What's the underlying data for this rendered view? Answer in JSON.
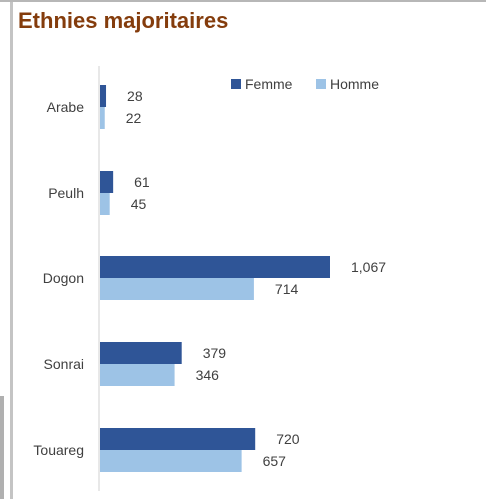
{
  "chart_data": {
    "type": "bar",
    "orientation": "horizontal",
    "title": "Ethnies majoritaires",
    "categories": [
      "Arabe",
      "Peulh",
      "Dogon",
      "Sonrai",
      "Touareg"
    ],
    "series": [
      {
        "name": "Femme",
        "color": "#2f5597",
        "values": [
          28,
          61,
          1067,
          379,
          720
        ],
        "labels": [
          "28",
          "61",
          "1,067",
          "379",
          "720"
        ]
      },
      {
        "name": "Homme",
        "color": "#9dc3e6",
        "values": [
          22,
          45,
          714,
          346,
          657
        ],
        "labels": [
          "22",
          "45",
          "714",
          "346",
          "657"
        ]
      }
    ],
    "xlim": [
      0,
      1300
    ],
    "grid": false,
    "legend": "top-right"
  }
}
